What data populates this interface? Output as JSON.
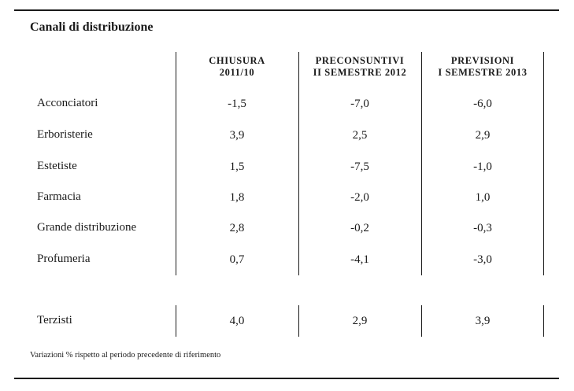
{
  "title": "Canali di distribuzione",
  "columns": [
    {
      "line1": "CHIUSURA",
      "line2": "2011/10"
    },
    {
      "line1": "PRECONSUNTIVI",
      "line2": "II SEMESTRE 2012"
    },
    {
      "line1": "PREVISIONI",
      "line2": "I SEMESTRE 2013"
    }
  ],
  "rows": [
    {
      "label": "Acconciatori",
      "values": [
        "-1,5",
        "-7,0",
        "-6,0"
      ]
    },
    {
      "label": "Erboristerie",
      "values": [
        "3,9",
        "2,5",
        "2,9"
      ]
    },
    {
      "label": "Estetiste",
      "values": [
        "1,5",
        "-7,5",
        "-1,0"
      ]
    },
    {
      "label": "Farmacia",
      "values": [
        "1,8",
        "-2,0",
        "1,0"
      ]
    },
    {
      "label": "Grande distribuzione",
      "values": [
        "2,8",
        "-0,2",
        "-0,3"
      ]
    },
    {
      "label": "Profumeria",
      "values": [
        "0,7",
        "-4,1",
        "-3,0"
      ]
    }
  ],
  "extra_row": {
    "label": "Terzisti",
    "values": [
      "4,0",
      "2,9",
      "3,9"
    ]
  },
  "note": "Variazioni % rispetto al periodo precedente di riferimento"
}
